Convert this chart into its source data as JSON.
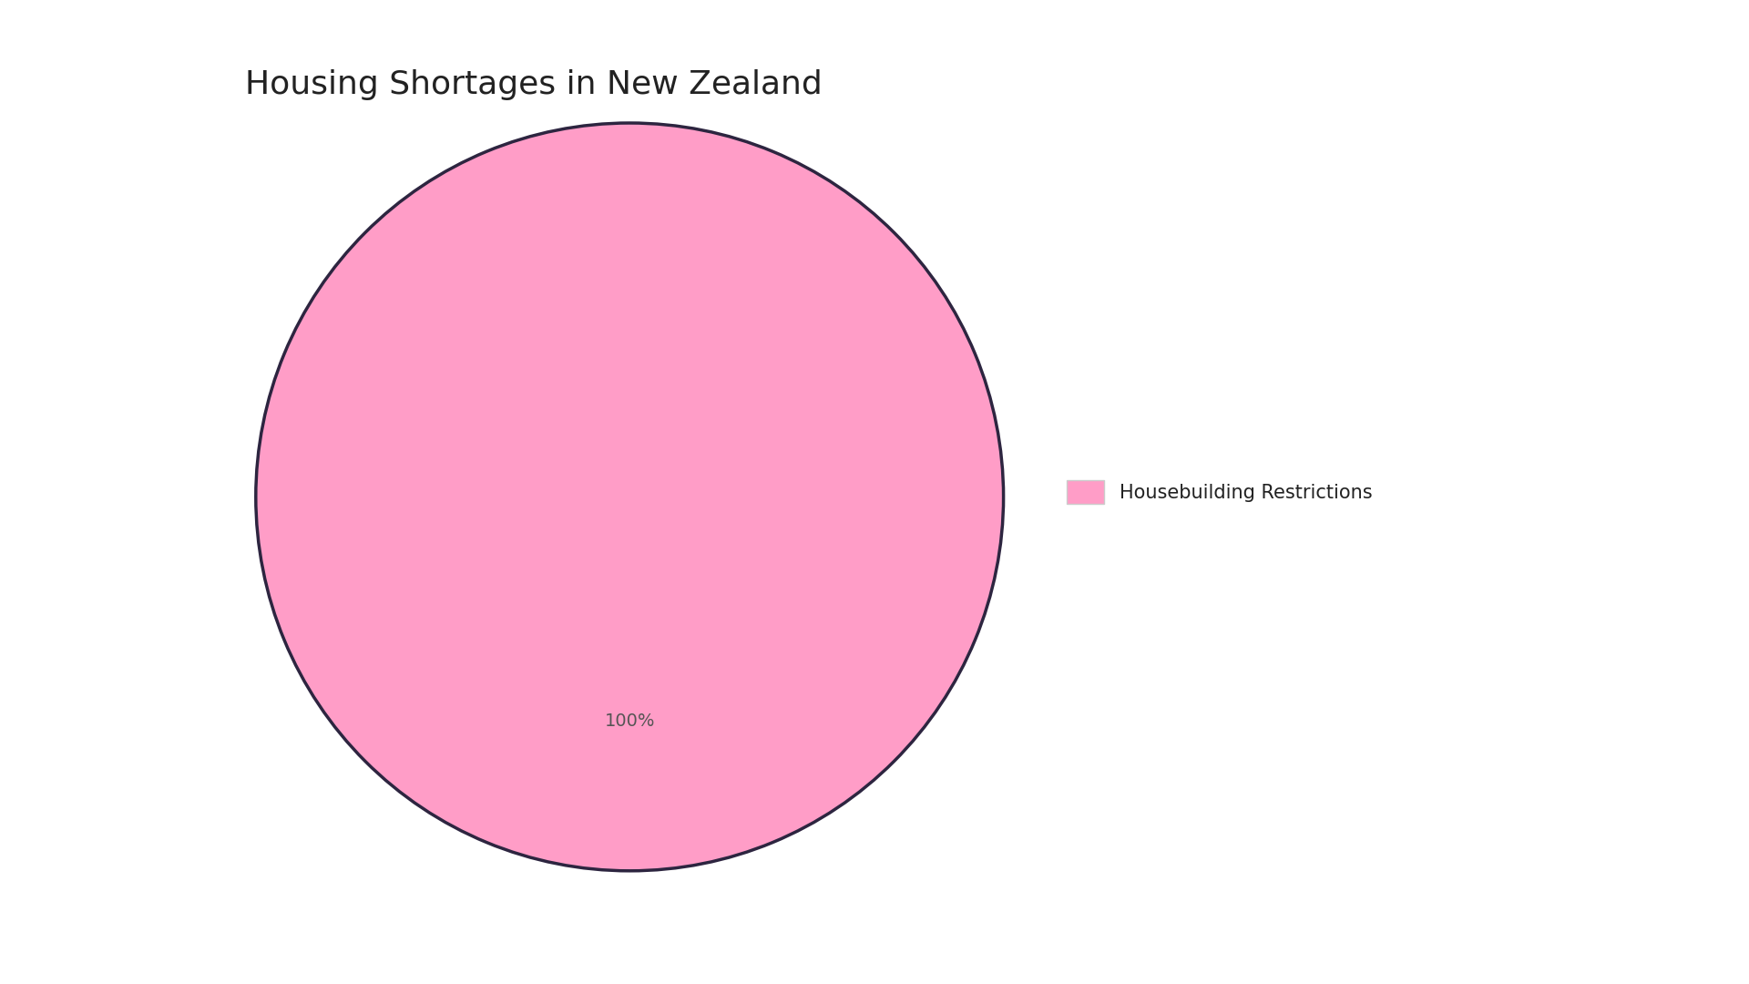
{
  "title": "Housing Shortages in New Zealand",
  "slices": [
    100
  ],
  "labels": [
    "Housebuilding Restrictions"
  ],
  "colors": [
    "#FF9DC7"
  ],
  "edge_color": "#2d2540",
  "edge_linewidth": 2.5,
  "autopct_fontsize": 14,
  "title_fontsize": 26,
  "legend_fontsize": 15,
  "background_color": "#ffffff",
  "title_color": "#222222",
  "pct_color": "#555555"
}
